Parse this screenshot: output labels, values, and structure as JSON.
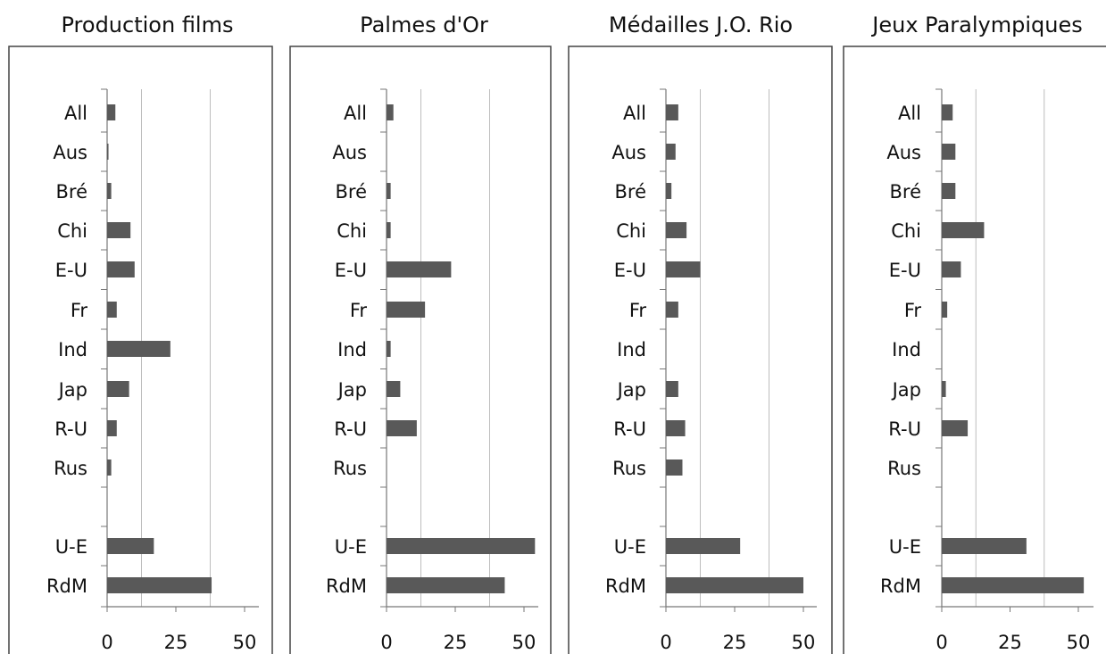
{
  "chart_data": [
    {
      "type": "bar",
      "orientation": "horizontal",
      "title": "Production films",
      "categories": [
        "All",
        "Aus",
        "Bré",
        "Chi",
        "E-U",
        "Fr",
        "Ind",
        "Jap",
        "R-U",
        "Rus",
        "",
        "U-E",
        "RdM"
      ],
      "values": [
        3,
        0.5,
        1.5,
        8.5,
        10,
        3.5,
        23,
        8,
        3.5,
        1.5,
        0,
        17,
        38
      ],
      "xlim": [
        0,
        55
      ],
      "xticks": [
        "0",
        "25",
        "50"
      ],
      "grid": true,
      "color": "#595959"
    },
    {
      "type": "bar",
      "orientation": "horizontal",
      "title": "Palmes d'Or",
      "categories": [
        "All",
        "Aus",
        "Bré",
        "Chi",
        "E-U",
        "Fr",
        "Ind",
        "Jap",
        "R-U",
        "Rus",
        "",
        "U-E",
        "RdM"
      ],
      "values": [
        2.5,
        0,
        1.5,
        1.5,
        23.5,
        14,
        1.5,
        5,
        11,
        0,
        0,
        54,
        43
      ],
      "xlim": [
        0,
        55
      ],
      "xticks": [
        "0",
        "25",
        "50"
      ],
      "grid": true,
      "color": "#595959"
    },
    {
      "type": "bar",
      "orientation": "horizontal",
      "title": "Médailles J.O. Rio",
      "categories": [
        "All",
        "Aus",
        "Bré",
        "Chi",
        "E-U",
        "Fr",
        "Ind",
        "Jap",
        "R-U",
        "Rus",
        "",
        "U-E",
        "RdM"
      ],
      "values": [
        4.5,
        3.5,
        2,
        7.5,
        12.5,
        4.5,
        0,
        4.5,
        7,
        6,
        0,
        27,
        50
      ],
      "xlim": [
        0,
        55
      ],
      "xticks": [
        "0",
        "25",
        "50"
      ],
      "grid": true,
      "color": "#595959"
    },
    {
      "type": "bar",
      "orientation": "horizontal",
      "title": "Jeux Paralympiques",
      "categories": [
        "All",
        "Aus",
        "Bré",
        "Chi",
        "E-U",
        "Fr",
        "Ind",
        "Jap",
        "R-U",
        "Rus",
        "",
        "U-E",
        "RdM"
      ],
      "values": [
        4,
        5,
        5,
        15.5,
        7,
        2,
        0,
        1.5,
        9.5,
        0,
        0,
        31,
        52
      ],
      "xlim": [
        0,
        55
      ],
      "xticks": [
        "0",
        "25",
        "50"
      ],
      "grid": true,
      "color": "#595959"
    }
  ]
}
